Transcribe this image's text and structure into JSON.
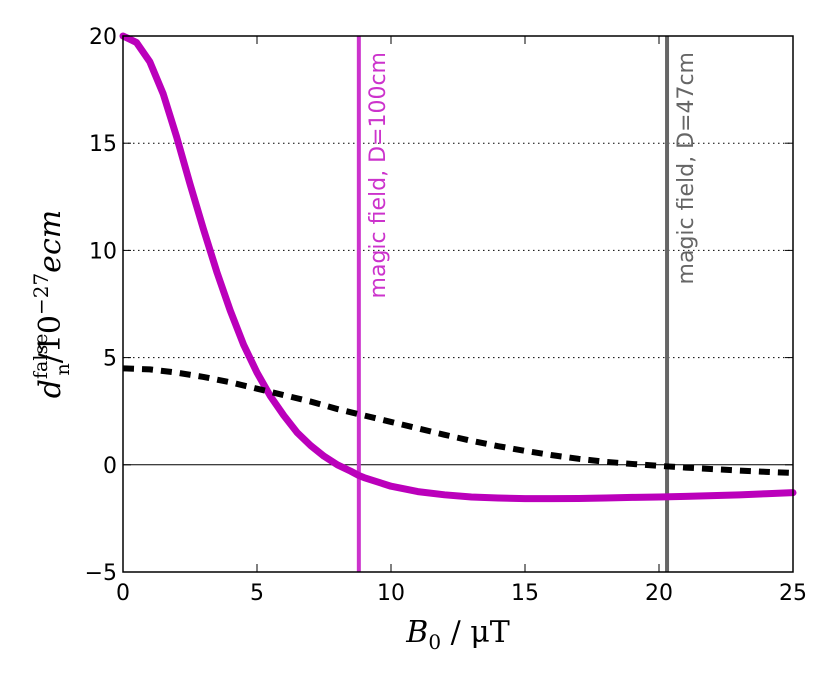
{
  "chart_data": {
    "type": "line",
    "xlabel": {
      "var": "B",
      "sub": "0",
      "unit": " / μT"
    },
    "ylabel": {
      "var": "d",
      "sub": "n",
      "sup": "false",
      "unit": "/10",
      "exp": "−27",
      "tail": "ecm"
    },
    "xlim": [
      0,
      25
    ],
    "ylim": [
      -5,
      20
    ],
    "xticks": [
      0,
      5,
      10,
      15,
      20,
      25
    ],
    "yticks": [
      -5,
      0,
      5,
      10,
      15,
      20
    ],
    "ytick_labels": [
      "−5",
      "0",
      "5",
      "10",
      "15",
      "20"
    ],
    "grid": "horizontal-dotted",
    "series": [
      {
        "style": "solid",
        "color": "#bb00bb",
        "x": [
          0,
          0.5,
          1,
          1.5,
          2,
          2.5,
          3,
          3.5,
          4,
          4.5,
          5,
          5.5,
          6,
          6.5,
          7,
          7.5,
          8,
          8.5,
          8.8,
          9,
          9.5,
          10,
          11,
          12,
          13,
          14,
          15,
          16,
          17,
          18,
          19,
          20,
          21,
          22,
          23,
          24,
          25
        ],
        "y": [
          20,
          19.7,
          18.8,
          17.3,
          15.3,
          13.1,
          11.0,
          9.0,
          7.2,
          5.6,
          4.3,
          3.2,
          2.3,
          1.5,
          0.9,
          0.4,
          0.0,
          -0.3,
          -0.5,
          -0.6,
          -0.8,
          -1.0,
          -1.25,
          -1.4,
          -1.5,
          -1.55,
          -1.58,
          -1.58,
          -1.57,
          -1.55,
          -1.52,
          -1.5,
          -1.47,
          -1.44,
          -1.4,
          -1.35,
          -1.3
        ]
      },
      {
        "style": "dashed",
        "color": "#000000",
        "x": [
          0,
          1,
          2,
          3,
          4,
          5,
          6,
          7,
          8,
          9,
          10,
          11,
          12,
          13,
          14,
          15,
          16,
          17,
          18,
          19,
          20,
          21,
          22,
          23,
          24,
          25
        ],
        "y": [
          4.5,
          4.45,
          4.3,
          4.1,
          3.85,
          3.55,
          3.25,
          2.95,
          2.6,
          2.3,
          2.0,
          1.7,
          1.4,
          1.12,
          0.87,
          0.65,
          0.45,
          0.28,
          0.14,
          0.04,
          -0.05,
          -0.13,
          -0.2,
          -0.27,
          -0.33,
          -0.38
        ]
      }
    ],
    "annotations": [
      {
        "type": "vline",
        "x": 8.8,
        "color": "#cc33cc",
        "label": "magic field, D=100cm"
      },
      {
        "type": "vline",
        "x": 20.3,
        "color": "#666666",
        "label": "magic field, D=47cm"
      }
    ]
  }
}
